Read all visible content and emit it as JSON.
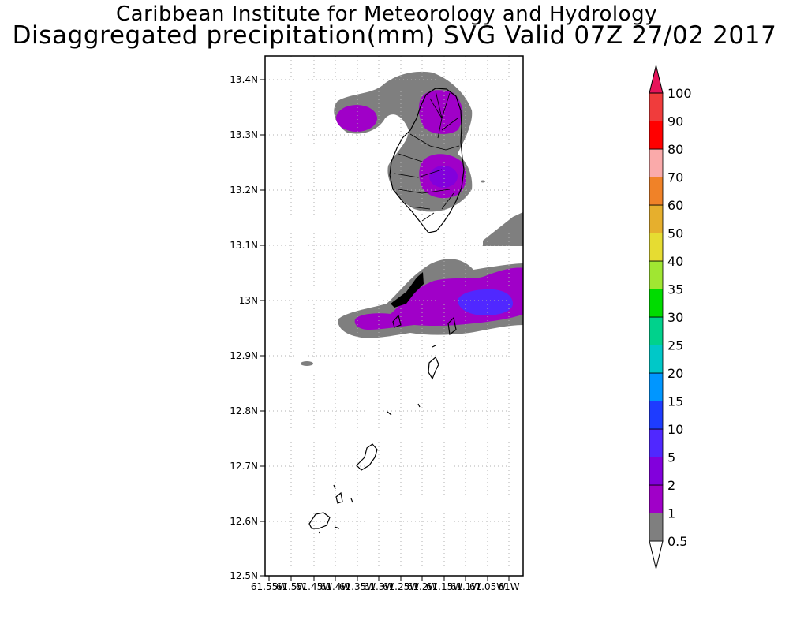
{
  "header": {
    "line1": "Caribbean Institute for Meteorology and Hydrology",
    "line2": "Disaggregated precipitation(mm) SVG Valid 07Z 27/02 2017"
  },
  "map": {
    "lat_labels": [
      "13.4N",
      "13.3N",
      "13.2N",
      "13.1N",
      "13N",
      "12.9N",
      "12.8N",
      "12.7N",
      "12.6N",
      "12.5N"
    ],
    "lon_labels": [
      "61.55W",
      "61.5W",
      "61.45W",
      "61.4W",
      "61.35W",
      "61.3W",
      "61.25W",
      "61.2W",
      "61.15W",
      "61.1W",
      "61.05W",
      "61W"
    ],
    "lat_range": [
      12.5,
      13.44
    ],
    "lon_range": [
      -61.55,
      -61.0
    ]
  },
  "colorbar": {
    "labels": [
      "0.5",
      "1",
      "2",
      "5",
      "10",
      "15",
      "20",
      "25",
      "30",
      "35",
      "40",
      "50",
      "60",
      "70",
      "80",
      "90",
      "100"
    ],
    "colors": [
      "#7f7f7f",
      "#a000c8",
      "#8200dc",
      "#5028ff",
      "#1e3cff",
      "#0096ff",
      "#00c8c8",
      "#00d28c",
      "#00dc00",
      "#a0e632",
      "#e6dc32",
      "#e6af2d",
      "#f08228",
      "#faaaaa",
      "#ff0000",
      "#f03c3c",
      "#e6145a"
    ]
  }
}
